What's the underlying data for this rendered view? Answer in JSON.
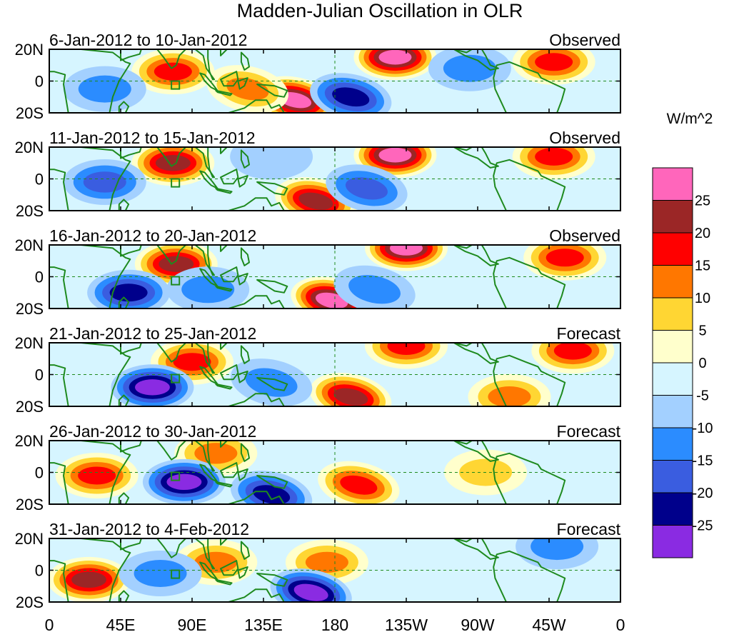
{
  "chart_data": {
    "type": "heatmap",
    "title": "Madden-Julian Oscillation in OLR",
    "units": "W/m^2",
    "x_tick_labels": [
      "0",
      "45E",
      "90E",
      "135E",
      "180",
      "135W",
      "90W",
      "45W",
      "0"
    ],
    "x_tick_lon": [
      0,
      45,
      90,
      135,
      180,
      225,
      270,
      315,
      360
    ],
    "y_tick_labels": [
      "20N",
      "0",
      "20S"
    ],
    "y_tick_lat": [
      20,
      0,
      -20
    ],
    "lat_range": [
      -20,
      20
    ],
    "lon_range": [
      0,
      360
    ],
    "legend": {
      "labels": [
        "25",
        "20",
        "15",
        "10",
        "5",
        "0",
        "-5",
        "-10",
        "-15",
        "-20",
        "-25"
      ],
      "colors": [
        "#ff66bb",
        "#9b2626",
        "#ff0000",
        "#ff7700",
        "#ffd633",
        "#ffffcc",
        "#d6f5ff",
        "#a3d0ff",
        "#2b8cff",
        "#3a5de0",
        "#00008b",
        "#8a2be2"
      ]
    },
    "panels": [
      {
        "period": "6-Jan-2012 to 10-Jan-2012",
        "status": "Observed",
        "anomalies": [
          {
            "lon": 78,
            "lat": 6,
            "value": 15
          },
          {
            "lon": 155,
            "lat": -12,
            "value": 25
          },
          {
            "lon": 125,
            "lat": -5,
            "value": 10
          },
          {
            "lon": 218,
            "lat": 15,
            "value": 25
          },
          {
            "lon": 318,
            "lat": 12,
            "value": 15
          },
          {
            "lon": 190,
            "lat": -10,
            "value": -20
          },
          {
            "lon": 35,
            "lat": -5,
            "value": -10
          },
          {
            "lon": 265,
            "lat": 8,
            "value": -10
          }
        ]
      },
      {
        "period": "11-Jan-2012 to 15-Jan-2012",
        "status": "Observed",
        "anomalies": [
          {
            "lon": 78,
            "lat": 10,
            "value": 20
          },
          {
            "lon": 168,
            "lat": -14,
            "value": 20
          },
          {
            "lon": 218,
            "lat": 15,
            "value": 25
          },
          {
            "lon": 318,
            "lat": 14,
            "value": 15
          },
          {
            "lon": 35,
            "lat": -2,
            "value": -15
          },
          {
            "lon": 200,
            "lat": -6,
            "value": -15
          },
          {
            "lon": 140,
            "lat": 14,
            "value": -5
          }
        ]
      },
      {
        "period": "16-Jan-2012 to 20-Jan-2012",
        "status": "Observed",
        "anomalies": [
          {
            "lon": 80,
            "lat": 8,
            "value": 20
          },
          {
            "lon": 178,
            "lat": -15,
            "value": 25
          },
          {
            "lon": 225,
            "lat": 18,
            "value": 25
          },
          {
            "lon": 325,
            "lat": 12,
            "value": 15
          },
          {
            "lon": 50,
            "lat": -10,
            "value": -20
          },
          {
            "lon": 100,
            "lat": -8,
            "value": -10
          },
          {
            "lon": 205,
            "lat": -8,
            "value": -10
          }
        ]
      },
      {
        "period": "21-Jan-2012 to 25-Jan-2012",
        "status": "Forecast",
        "anomalies": [
          {
            "lon": 90,
            "lat": 8,
            "value": 15
          },
          {
            "lon": 190,
            "lat": -14,
            "value": 20
          },
          {
            "lon": 225,
            "lat": 18,
            "value": 15
          },
          {
            "lon": 330,
            "lat": 15,
            "value": 15
          },
          {
            "lon": 65,
            "lat": -8,
            "value": -25
          },
          {
            "lon": 140,
            "lat": -5,
            "value": -10
          },
          {
            "lon": 290,
            "lat": -14,
            "value": 10
          }
        ]
      },
      {
        "period": "26-Jan-2012 to 30-Jan-2012",
        "status": "Forecast",
        "anomalies": [
          {
            "lon": 30,
            "lat": -2,
            "value": 15
          },
          {
            "lon": 105,
            "lat": 12,
            "value": 10
          },
          {
            "lon": 195,
            "lat": -8,
            "value": 15
          },
          {
            "lon": 85,
            "lat": -6,
            "value": -25
          },
          {
            "lon": 140,
            "lat": -14,
            "value": -20
          },
          {
            "lon": 275,
            "lat": 0,
            "value": 5
          }
        ]
      },
      {
        "period": "31-Jan-2012 to 4-Feb-2012",
        "status": "Forecast",
        "anomalies": [
          {
            "lon": 25,
            "lat": -6,
            "value": 20
          },
          {
            "lon": 105,
            "lat": 5,
            "value": 10
          },
          {
            "lon": 175,
            "lat": 5,
            "value": 10
          },
          {
            "lon": 70,
            "lat": -2,
            "value": -10
          },
          {
            "lon": 165,
            "lat": -14,
            "value": -25
          },
          {
            "lon": 320,
            "lat": 15,
            "value": -10
          }
        ]
      }
    ]
  }
}
